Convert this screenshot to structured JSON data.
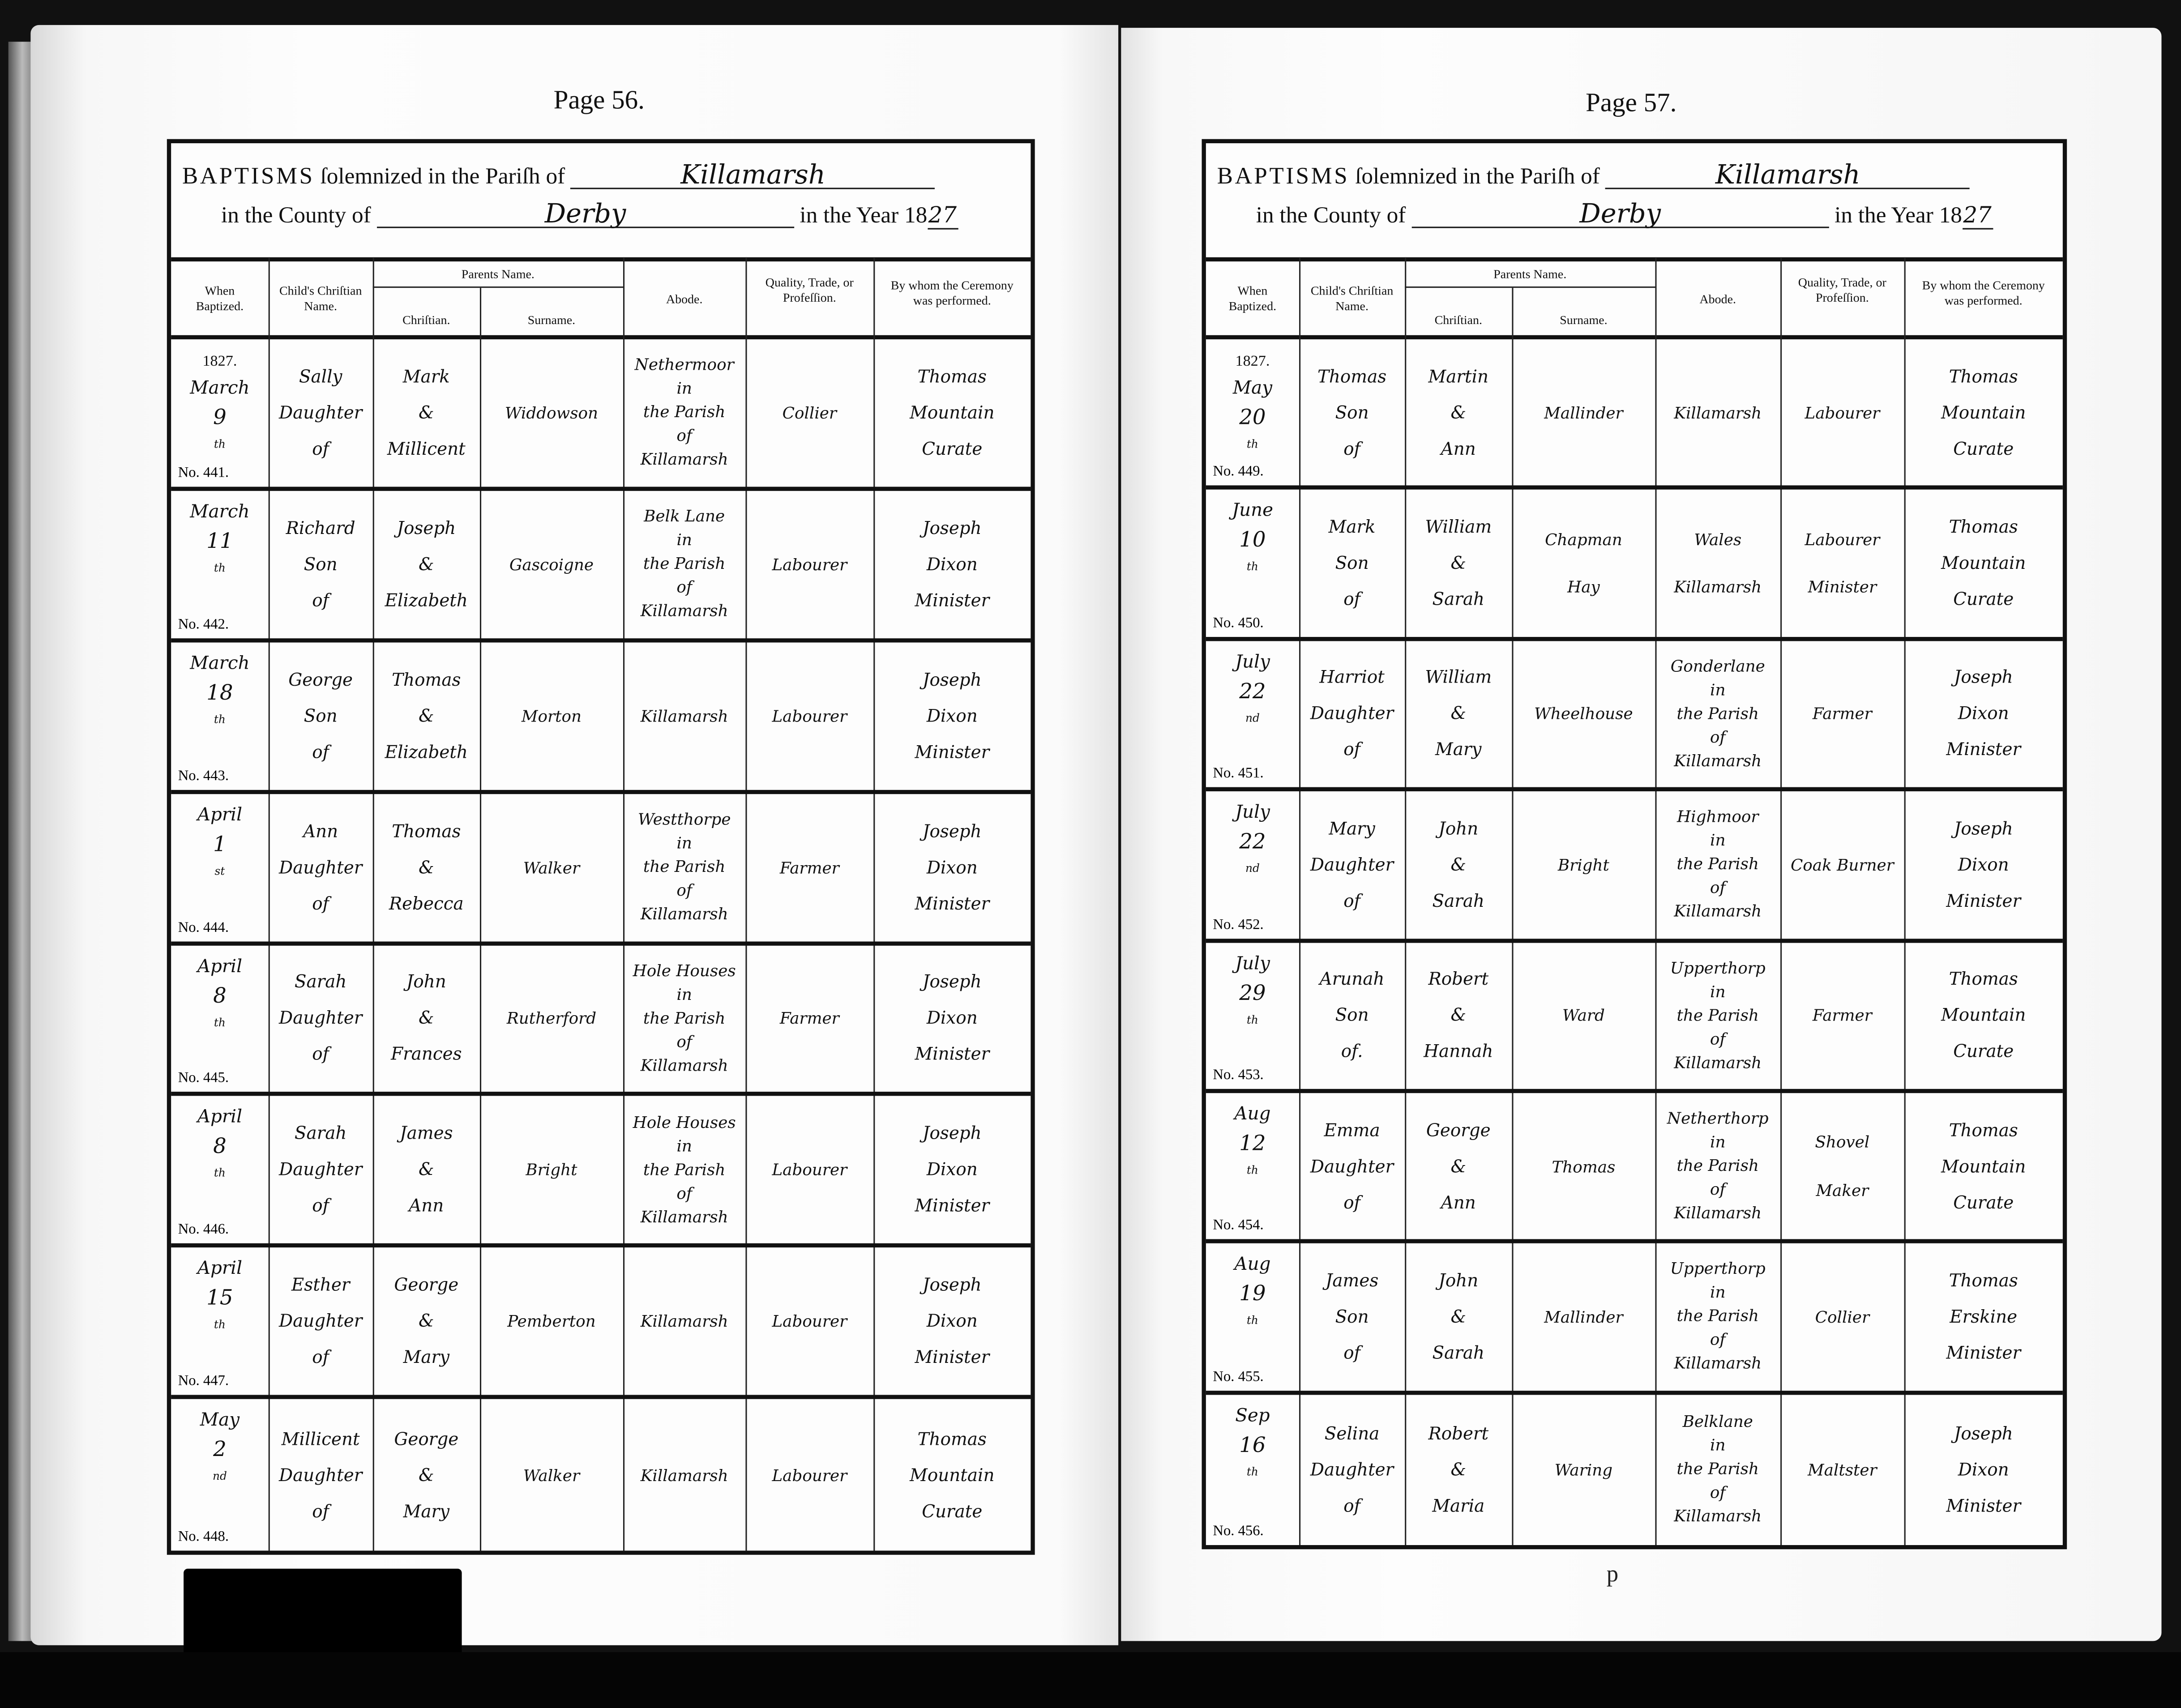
{
  "form": {
    "title_caps": "BAPTISMS",
    "title_rest": "ſolemnized in the Pariſh of",
    "county_label": "in the County of",
    "year_label": "in the Year 18",
    "columns": {
      "when": "When Baptized.",
      "child": "Child's Chriſtian Name.",
      "parents": "Parents Name.",
      "christian": "Chriſtian.",
      "surname": "Surname.",
      "abode": "Abode.",
      "trade": "Quality, Trade, or Profeſſion.",
      "by_whom": "By whom the Ceremony was performed."
    }
  },
  "pages": [
    {
      "page_label": "Page 56.",
      "parish": "Killamarsh",
      "county": "Derby",
      "year_suffix": "27",
      "entries": [
        {
          "no": "No. 441.",
          "year": "1827.",
          "month": "March",
          "day": "9",
          "suffix": "th",
          "child": [
            "Sally",
            "Daughter",
            "of"
          ],
          "parents": [
            "Mark",
            "&",
            "Millicent"
          ],
          "surname": [
            "Widdowson"
          ],
          "abode": [
            "Nethermoor",
            "in",
            "the Parish",
            "of",
            "Killamarsh"
          ],
          "trade": [
            "Collier"
          ],
          "by": [
            "Thomas",
            "Mountain",
            "Curate"
          ]
        },
        {
          "no": "No. 442.",
          "month": "March",
          "day": "11",
          "suffix": "th",
          "child": [
            "Richard",
            "Son",
            "of"
          ],
          "parents": [
            "Joseph",
            "&",
            "Elizabeth"
          ],
          "surname": [
            "Gascoigne"
          ],
          "abode": [
            "Belk Lane",
            "in",
            "the Parish",
            "of",
            "Killamarsh"
          ],
          "trade": [
            "Labourer"
          ],
          "by": [
            "Joseph",
            "Dixon",
            "Minister"
          ]
        },
        {
          "no": "No. 443.",
          "month": "March",
          "day": "18",
          "suffix": "th",
          "child": [
            "George",
            "Son",
            "of"
          ],
          "parents": [
            "Thomas",
            "&",
            "Elizabeth"
          ],
          "surname": [
            "Morton"
          ],
          "abode": [
            "Killamarsh"
          ],
          "trade": [
            "Labourer"
          ],
          "by": [
            "Joseph",
            "Dixon",
            "Minister"
          ]
        },
        {
          "no": "No. 444.",
          "month": "April",
          "day": "1",
          "suffix": "st",
          "child": [
            "Ann",
            "Daughter",
            "of"
          ],
          "parents": [
            "Thomas",
            "&",
            "Rebecca"
          ],
          "surname": [
            "Walker"
          ],
          "abode": [
            "Westthorpe",
            "in",
            "the Parish",
            "of",
            "Killamarsh"
          ],
          "trade": [
            "Farmer"
          ],
          "by": [
            "Joseph",
            "Dixon",
            "Minister"
          ]
        },
        {
          "no": "No. 445.",
          "month": "April",
          "day": "8",
          "suffix": "th",
          "child": [
            "Sarah",
            "Daughter",
            "of"
          ],
          "parents": [
            "John",
            "&",
            "Frances"
          ],
          "surname": [
            "Rutherford"
          ],
          "abode": [
            "Hole Houses",
            "in",
            "the Parish",
            "of",
            "Killamarsh"
          ],
          "trade": [
            "Farmer"
          ],
          "by": [
            "Joseph",
            "Dixon",
            "Minister"
          ]
        },
        {
          "no": "No. 446.",
          "month": "April",
          "day": "8",
          "suffix": "th",
          "child": [
            "Sarah",
            "Daughter",
            "of"
          ],
          "parents": [
            "James",
            "&",
            "Ann"
          ],
          "surname": [
            "Bright"
          ],
          "abode": [
            "Hole Houses",
            "in",
            "the Parish",
            "of",
            "Killamarsh"
          ],
          "trade": [
            "Labourer"
          ],
          "by": [
            "Joseph",
            "Dixon",
            "Minister"
          ]
        },
        {
          "no": "No. 447.",
          "month": "April",
          "day": "15",
          "suffix": "th",
          "child": [
            "Esther",
            "Daughter",
            "of"
          ],
          "parents": [
            "George",
            "&",
            "Mary"
          ],
          "surname": [
            "Pemberton"
          ],
          "abode": [
            "Killamarsh"
          ],
          "trade": [
            "Labourer"
          ],
          "by": [
            "Joseph",
            "Dixon",
            "Minister"
          ]
        },
        {
          "no": "No. 448.",
          "month": "May",
          "day": "2",
          "suffix": "nd",
          "child": [
            "Millicent",
            "Daughter",
            "of"
          ],
          "parents": [
            "George",
            "&",
            "Mary"
          ],
          "surname": [
            "Walker"
          ],
          "abode": [
            "Killamarsh"
          ],
          "trade": [
            "Labourer"
          ],
          "by": [
            "Thomas",
            "Mountain",
            "Curate"
          ]
        }
      ]
    },
    {
      "page_label": "Page 57.",
      "parish": "Killamarsh",
      "county": "Derby",
      "year_suffix": "27",
      "entries": [
        {
          "no": "No. 449.",
          "year": "1827.",
          "month": "May",
          "day": "20",
          "suffix": "th",
          "child": [
            "Thomas",
            "Son",
            "of"
          ],
          "parents": [
            "Martin",
            "&",
            "Ann"
          ],
          "surname": [
            "Mallinder"
          ],
          "abode": [
            "Killamarsh"
          ],
          "trade": [
            "Labourer"
          ],
          "by": [
            "Thomas",
            "Mountain",
            "Curate"
          ]
        },
        {
          "no": "No. 450.",
          "month": "June",
          "day": "10",
          "suffix": "th",
          "child": [
            "Mark",
            "Son",
            "of"
          ],
          "parents": [
            "William",
            "&",
            "Sarah"
          ],
          "surname": [
            "Chapman",
            "Hay"
          ],
          "abode": [
            "Wales",
            "Killamarsh"
          ],
          "trade": [
            "Labourer",
            "Minister"
          ],
          "by": [
            "Thomas",
            "Mountain",
            "Curate"
          ]
        },
        {
          "no": "No. 451.",
          "month": "July",
          "day": "22",
          "suffix": "nd",
          "child": [
            "Harriot",
            "Daughter",
            "of"
          ],
          "parents": [
            "William",
            "&",
            "Mary"
          ],
          "surname": [
            "Wheelhouse"
          ],
          "abode": [
            "Gonderlane",
            "in",
            "the Parish",
            "of",
            "Killamarsh"
          ],
          "trade": [
            "Farmer"
          ],
          "by": [
            "Joseph",
            "Dixon",
            "Minister"
          ]
        },
        {
          "no": "No. 452.",
          "month": "July",
          "day": "22",
          "suffix": "nd",
          "child": [
            "Mary",
            "Daughter",
            "of"
          ],
          "parents": [
            "John",
            "&",
            "Sarah"
          ],
          "surname": [
            "Bright"
          ],
          "abode": [
            "Highmoor",
            "in",
            "the Parish",
            "of",
            "Killamarsh"
          ],
          "trade": [
            "Coak Burner"
          ],
          "by": [
            "Joseph",
            "Dixon",
            "Minister"
          ]
        },
        {
          "no": "No. 453.",
          "month": "July",
          "day": "29",
          "suffix": "th",
          "child": [
            "Arunah",
            "Son",
            "of."
          ],
          "parents": [
            "Robert",
            "&",
            "Hannah"
          ],
          "surname": [
            "Ward"
          ],
          "abode": [
            "Upperthorp",
            "in",
            "the Parish",
            "of",
            "Killamarsh"
          ],
          "trade": [
            "Farmer"
          ],
          "by": [
            "Thomas",
            "Mountain",
            "Curate"
          ]
        },
        {
          "no": "No. 454.",
          "month": "Aug",
          "day": "12",
          "suffix": "th",
          "child": [
            "Emma",
            "Daughter",
            "of"
          ],
          "parents": [
            "George",
            "&",
            "Ann"
          ],
          "surname": [
            "Thomas"
          ],
          "abode": [
            "Netherthorp",
            "in",
            "the Parish",
            "of",
            "Killamarsh"
          ],
          "trade": [
            "Shovel",
            "Maker"
          ],
          "by": [
            "Thomas",
            "Mountain",
            "Curate"
          ]
        },
        {
          "no": "No. 455.",
          "month": "Aug",
          "day": "19",
          "suffix": "th",
          "child": [
            "James",
            "Son",
            "of"
          ],
          "parents": [
            "John",
            "&",
            "Sarah"
          ],
          "surname": [
            "Mallinder"
          ],
          "abode": [
            "Upperthorp",
            "in",
            "the Parish",
            "of",
            "Killamarsh"
          ],
          "trade": [
            "Collier"
          ],
          "by": [
            "Thomas",
            "Erskine",
            "Minister"
          ]
        },
        {
          "no": "No. 456.",
          "month": "Sep",
          "day": "16",
          "suffix": "th",
          "child": [
            "Selina",
            "Daughter",
            "of"
          ],
          "parents": [
            "Robert",
            "&",
            "Maria"
          ],
          "surname": [
            "Waring"
          ],
          "abode": [
            "Belklane",
            "in",
            "the Parish",
            "of",
            "Killamarsh"
          ],
          "trade": [
            "Maltster"
          ],
          "by": [
            "Joseph",
            "Dixon",
            "Minister"
          ]
        }
      ]
    }
  ],
  "footer_mark": "p"
}
